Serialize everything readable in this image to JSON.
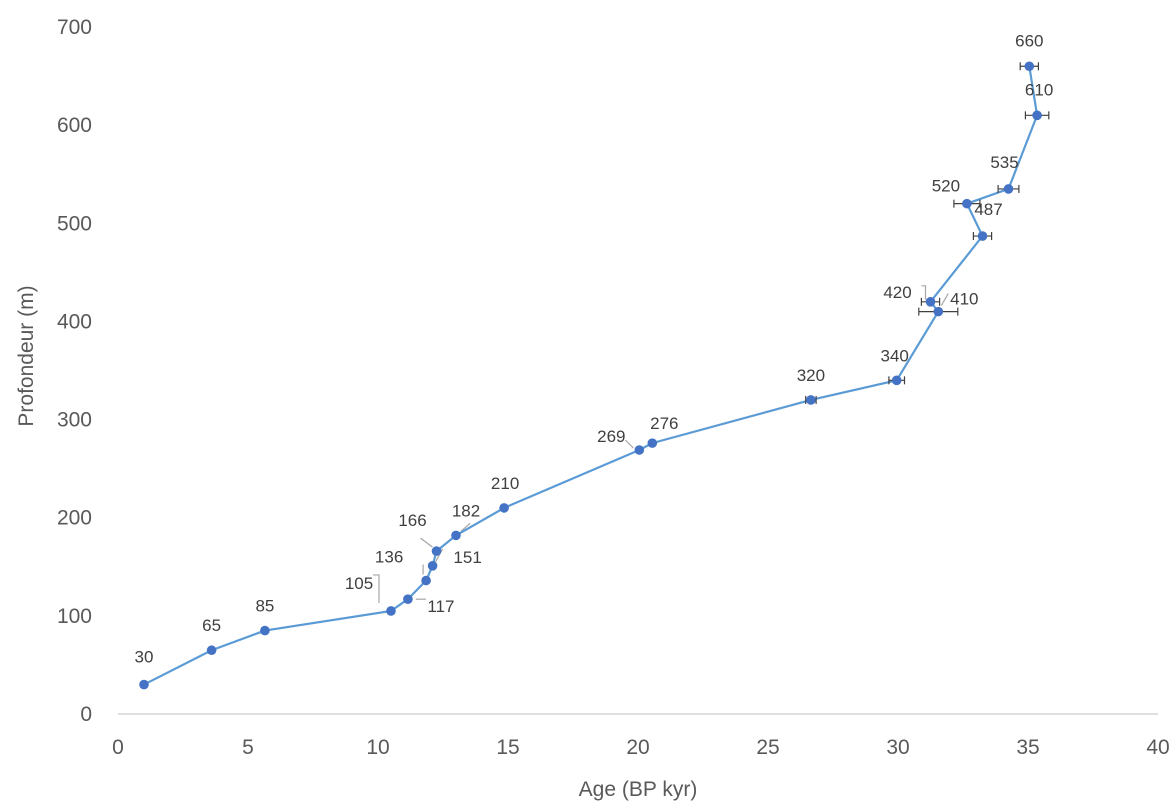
{
  "chart_data": {
    "type": "scatter",
    "title": "",
    "xlabel": "Age (BP kyr)",
    "ylabel": "Profondeur (m)",
    "xlim": [
      0,
      40
    ],
    "ylim": [
      0,
      700
    ],
    "xticks": [
      0,
      5,
      10,
      15,
      20,
      25,
      30,
      35,
      40
    ],
    "yticks": [
      0,
      100,
      200,
      300,
      400,
      500,
      600,
      700
    ],
    "grid": false,
    "legend": "none",
    "colors": {
      "line": "#5b9bd5",
      "marker": "#4472c4",
      "errorbar": "#404040",
      "leader": "#a6a6a6"
    },
    "points": [
      {
        "x": 1.0,
        "y": 30,
        "label": "30"
      },
      {
        "x": 3.6,
        "y": 65,
        "label": "65"
      },
      {
        "x": 5.65,
        "y": 85,
        "label": "85"
      },
      {
        "x": 10.5,
        "y": 105,
        "label": "105"
      },
      {
        "x": 11.15,
        "y": 117,
        "label": "117"
      },
      {
        "x": 11.85,
        "y": 136,
        "label": "136"
      },
      {
        "x": 12.1,
        "y": 151,
        "label": "151"
      },
      {
        "x": 12.25,
        "y": 166,
        "label": "166"
      },
      {
        "x": 13.0,
        "y": 182,
        "label": "182"
      },
      {
        "x": 14.85,
        "y": 210,
        "label": "210"
      },
      {
        "x": 20.05,
        "y": 269,
        "label": "269"
      },
      {
        "x": 20.55,
        "y": 276,
        "label": "276"
      },
      {
        "x": 26.65,
        "y": 320,
        "label": "320",
        "xerr": 0.2
      },
      {
        "x": 29.95,
        "y": 340,
        "label": "340",
        "xerr": 0.3
      },
      {
        "x": 31.55,
        "y": 410,
        "label": "410",
        "xerr": 0.75
      },
      {
        "x": 31.25,
        "y": 420,
        "label": "420",
        "xerr": 0.35
      },
      {
        "x": 33.25,
        "y": 487,
        "label": "487",
        "xerr": 0.35
      },
      {
        "x": 32.65,
        "y": 520,
        "label": "520",
        "xerr": 0.5
      },
      {
        "x": 34.25,
        "y": 535,
        "label": "535",
        "xerr": 0.4
      },
      {
        "x": 35.35,
        "y": 610,
        "label": "610",
        "xerr": 0.45
      },
      {
        "x": 35.05,
        "y": 660,
        "label": "660",
        "xerr": 0.35
      }
    ]
  }
}
